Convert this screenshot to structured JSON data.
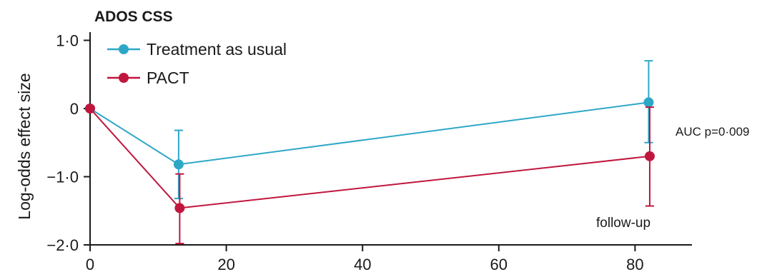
{
  "chart_data": {
    "type": "line",
    "title": "ADOS CSS",
    "ylabel": "Log-odds effect size",
    "xlabel": "",
    "xlim": [
      0,
      88
    ],
    "ylim": [
      -2.0,
      1.0
    ],
    "x_ticks": [
      0,
      20,
      40,
      60,
      80
    ],
    "x_tick_labels": [
      "0",
      "20",
      "40",
      "60",
      "80"
    ],
    "y_ticks": [
      1.0,
      0,
      -1.0,
      -2.0
    ],
    "y_tick_labels": [
      "1·0",
      "0",
      "−1·0",
      "−2·0"
    ],
    "grid": false,
    "legend_position": "top-left",
    "series": [
      {
        "name": "Treatment as usual",
        "color": "#2ea7c7",
        "x": [
          0,
          13,
          82
        ],
        "y": [
          0,
          -0.82,
          0.09
        ],
        "err_low": [
          null,
          -1.32,
          -0.5
        ],
        "err_high": [
          null,
          -0.32,
          0.7
        ]
      },
      {
        "name": "PACT",
        "color": "#c0163e",
        "x": [
          0,
          13,
          82
        ],
        "y": [
          0,
          -1.46,
          -0.7
        ],
        "err_low": [
          null,
          -1.98,
          -1.43
        ],
        "err_high": [
          null,
          -0.96,
          0.02
        ]
      }
    ],
    "annotations": [
      {
        "id": "auc",
        "text": "AUC p=0·009"
      },
      {
        "id": "followup",
        "text": "follow-up"
      }
    ]
  }
}
